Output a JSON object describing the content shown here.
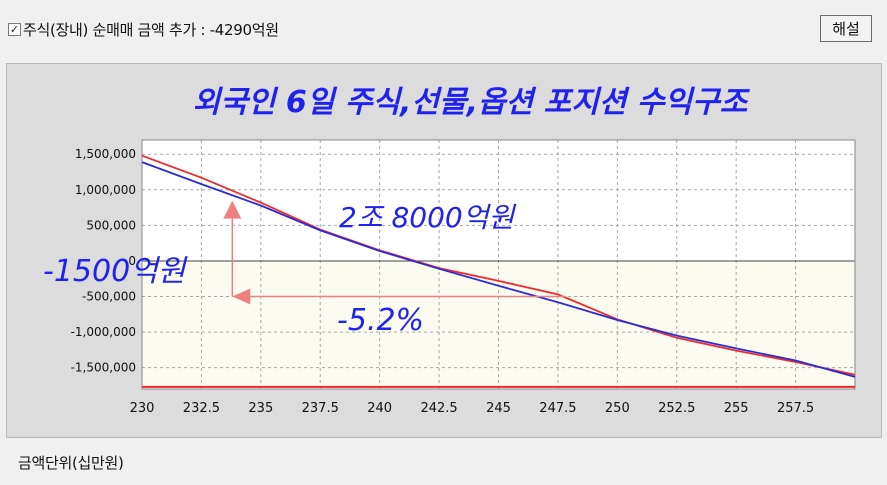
{
  "header": {
    "checkbox_checked": true,
    "checkbox_label": "주식(장내) 순매매 금액 추가 : -4290억원",
    "help_button_label": "해설"
  },
  "footer": {
    "unit_label": "금액단위(십만원)"
  },
  "colors": {
    "background": "#f0f0f0",
    "chart_frame": "#dcdcdc",
    "plot_bg": "#ffffff",
    "title_color": "#1f22ee",
    "annotation_color": "#1f22ee",
    "series_red": "#ee2a2a",
    "series_blue": "#2b2bd8",
    "arrow_color": "#f08080"
  },
  "chart_data": {
    "type": "line",
    "title": "외국인 6일 주식,선물,옵션 포지션 수익구조",
    "xlabel": "",
    "ylabel": "",
    "xlim": [
      230,
      260
    ],
    "ylim": [
      -1800000,
      1700000
    ],
    "x_ticks": [
      230,
      232.5,
      235,
      237.5,
      240,
      242.5,
      245,
      247.5,
      250,
      252.5,
      255,
      257.5
    ],
    "x_tick_labels": [
      "230",
      "232.5",
      "235",
      "237.5",
      "240",
      "242.5",
      "245",
      "247.5",
      "250",
      "252.5",
      "255",
      "257.5"
    ],
    "y_ticks": [
      1500000,
      1000000,
      500000,
      0,
      -500000,
      -1000000,
      -1500000
    ],
    "y_tick_labels": [
      "1,500,000",
      "1,000,000",
      "500,000",
      "0",
      "-500,000",
      "-1,000,000",
      "-1,500,000"
    ],
    "grid": true,
    "series": [
      {
        "color": "#ee2a2a",
        "x": [
          230,
          232.5,
          235,
          237.5,
          240,
          242.5,
          245,
          247.5,
          250,
          252.5,
          255,
          257.5,
          260
        ],
        "y": [
          1480000,
          1170000,
          820000,
          440000,
          150000,
          -100000,
          -280000,
          -470000,
          -820000,
          -1080000,
          -1260000,
          -1420000,
          -1600000
        ]
      },
      {
        "color": "#2b2bd8",
        "x": [
          230,
          232.5,
          235,
          237.5,
          240,
          242.5,
          245,
          247.5,
          250,
          252.5,
          255,
          257.5,
          260
        ],
        "y": [
          1390000,
          1080000,
          780000,
          430000,
          140000,
          -110000,
          -350000,
          -580000,
          -830000,
          -1050000,
          -1230000,
          -1400000,
          -1630000
        ]
      },
      {
        "color": "#ee2a2a",
        "x": [
          230,
          260
        ],
        "y": [
          -1770000,
          -1770000
        ]
      }
    ],
    "annotations": {
      "profit": "2조 8000억원",
      "loss": "-1500억원",
      "pct": "-5.2%"
    }
  }
}
